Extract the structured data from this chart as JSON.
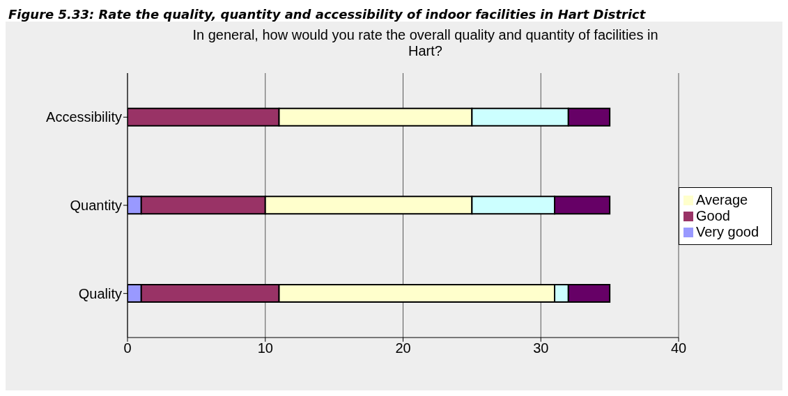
{
  "chart_data": {
    "type": "bar",
    "orientation": "horizontal",
    "stacked": true,
    "title": "Figure 5.33: Rate the quality, quantity and accessibility of indoor facilities in Hart District",
    "subtitle": "In general, how would you rate the overall quality and quantity of facilities in Hart?",
    "categories": [
      "Accessibility",
      "Quantity",
      "Quality"
    ],
    "series": [
      {
        "name": "Very good",
        "color": "#9999ff",
        "values": [
          0,
          1,
          1
        ]
      },
      {
        "name": "Good",
        "color": "#993366",
        "values": [
          11,
          9,
          10
        ]
      },
      {
        "name": "Average",
        "color": "#ffffcc",
        "values": [
          14,
          15,
          20
        ]
      },
      {
        "color": "#ccffff",
        "values": [
          7,
          6,
          1
        ]
      },
      {
        "color": "#660066",
        "values": [
          3,
          4,
          3
        ]
      }
    ],
    "xlim": [
      0,
      40
    ],
    "xticks": [
      0,
      10,
      20,
      30,
      40
    ],
    "grid": "x",
    "legend": "right"
  }
}
